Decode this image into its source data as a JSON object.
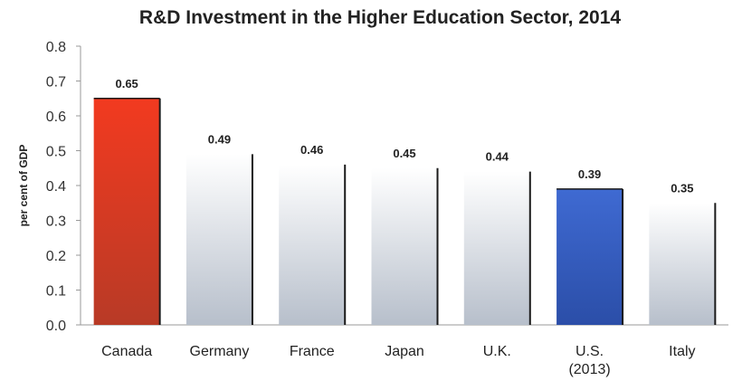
{
  "chart_data": {
    "type": "bar",
    "title": "R&D Investment in the Higher Education Sector, 2014",
    "xlabel": "",
    "ylabel": "per cent of GDP",
    "ylim": [
      0,
      0.8
    ],
    "yticks": [
      "0.0",
      "0.1",
      "0.2",
      "0.3",
      "0.4",
      "0.5",
      "0.6",
      "0.7",
      "0.8"
    ],
    "categories": [
      [
        "Canada"
      ],
      [
        "Germany"
      ],
      [
        "France"
      ],
      [
        "Japan"
      ],
      [
        "U.K."
      ],
      [
        "U.S.",
        "(2013)"
      ],
      [
        "Italy"
      ]
    ],
    "values": [
      0.65,
      0.49,
      0.46,
      0.45,
      0.44,
      0.39,
      0.35
    ],
    "data_labels": [
      "0.65",
      "0.49",
      "0.46",
      "0.45",
      "0.44",
      "0.39",
      "0.35"
    ],
    "grid": false,
    "colors": {
      "canada": "#e8321e",
      "us": "#3a62c8",
      "others_top": "#ffffff",
      "others_bottom": "#b8c0cc"
    }
  }
}
